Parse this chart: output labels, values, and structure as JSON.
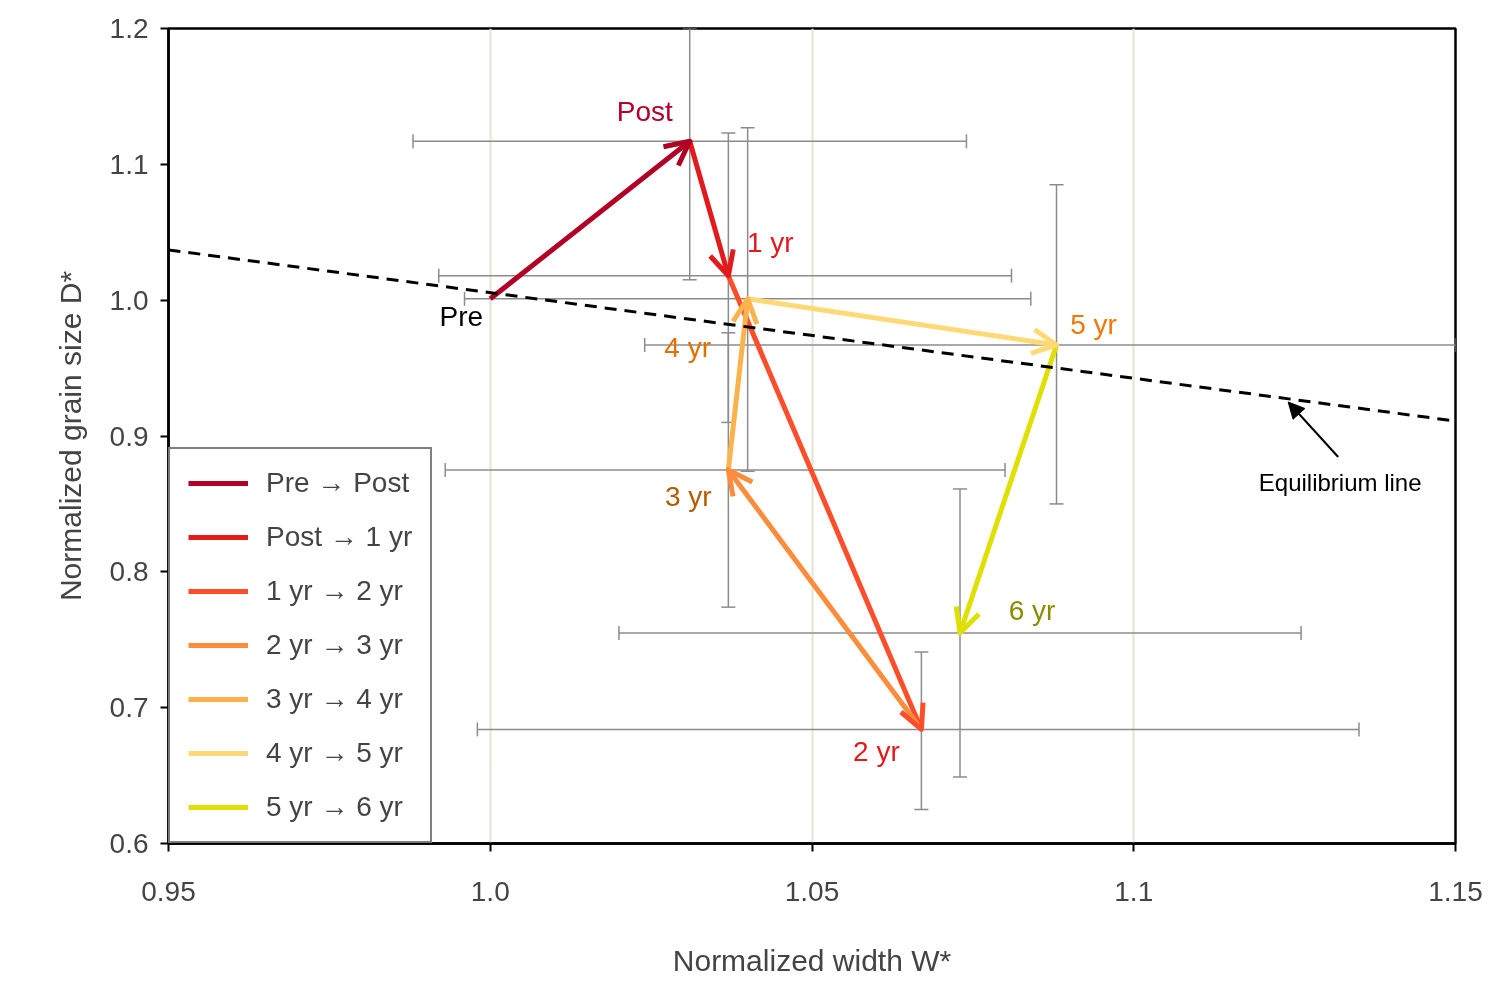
{
  "chart_data": {
    "type": "line",
    "xlabel": "Normalized width W*",
    "ylabel": "Normalized grain size D*",
    "xlim": [
      0.95,
      1.15
    ],
    "ylim": [
      0.6,
      1.2
    ],
    "xticks": [
      0.95,
      {
        "value": 1.0,
        "label": "1.0"
      },
      1.05,
      1.1,
      1.15
    ],
    "yticks": [
      0.6,
      0.7,
      0.8,
      0.9,
      {
        "value": 1.0,
        "label": "1.0"
      },
      1.1,
      1.2
    ],
    "grid": "x",
    "legend": "bottom left",
    "series": [
      {
        "name": "Pre → Post",
        "color": "#b10026",
        "x": [
          1.0,
          1.031
        ],
        "values": [
          1.001,
          1.117
        ],
        "errors": [
          null,
          [
            1.015,
            1.2
          ]
        ],
        "xerrors": [
          null,
          [
            0.988,
            1.074
          ]
        ]
      },
      {
        "name": "Post → 1 yr",
        "color": "#e31a1c",
        "x": [
          1.031,
          1.037
        ],
        "values": [
          1.117,
          1.018
        ],
        "errors": [
          null,
          [
            0.91,
            1.123
          ]
        ],
        "xerrors": [
          null,
          [
            0.992,
            1.081
          ]
        ]
      },
      {
        "name": "1 yr → 2 yr",
        "color": "#fc4e2a",
        "x": [
          1.037,
          1.067
        ],
        "values": [
          1.018,
          0.684
        ],
        "errors": [
          null,
          [
            0.625,
            0.741
          ]
        ],
        "xerrors": [
          null,
          [
            0.998,
            1.135
          ]
        ]
      },
      {
        "name": "2 yr → 3 yr",
        "color": "#fd8d3c",
        "x": [
          1.067,
          1.037
        ],
        "values": [
          0.684,
          0.875
        ],
        "errors": [
          null,
          [
            0.774,
            0.976
          ]
        ],
        "xerrors": [
          null,
          [
            0.993,
            1.08
          ]
        ]
      },
      {
        "name": "3 yr → 4 yr",
        "color": "#feb24c",
        "x": [
          1.037,
          1.04
        ],
        "values": [
          0.875,
          1.001
        ],
        "errors": [
          null,
          [
            0.874,
            1.127
          ]
        ],
        "xerrors": [
          null,
          [
            0.996,
            1.084
          ]
        ]
      },
      {
        "name": "4 yr → 5 yr",
        "color": "#fed976",
        "x": [
          1.04,
          1.088
        ],
        "values": [
          1.001,
          0.967
        ],
        "errors": [
          null,
          [
            0.85,
            1.085
          ]
        ],
        "xerrors": [
          null,
          [
            1.024,
            1.15
          ]
        ]
      },
      {
        "name": "5 yr → 6 yr",
        "color": "#e0e000",
        "x": [
          1.088,
          1.073
        ],
        "values": [
          0.967,
          0.755
        ],
        "errors": [
          null,
          [
            0.649,
            0.861
          ]
        ],
        "xerrors": [
          null,
          [
            1.02,
            1.126
          ]
        ]
      },
      {
        "type": "line",
        "color": "#000000",
        "line_style": "dashed",
        "x": [
          0.95,
          1.15
        ],
        "values": [
          1.037,
          0.911
        ]
      }
    ],
    "annotations": [
      {
        "text": "Pre",
        "x": 1.0,
        "y": 1.001
      },
      {
        "text": "Post",
        "x": 1.031,
        "y": 1.117
      },
      {
        "text": "1 yr",
        "x": 1.037,
        "y": 1.018
      },
      {
        "text": "2 yr",
        "x": 1.067,
        "y": 0.684
      },
      {
        "text": "3 yr",
        "x": 1.037,
        "y": 0.875
      },
      {
        "text": "4 yr",
        "x": 1.04,
        "y": 1.001
      },
      {
        "text": "5 yr",
        "x": 1.088,
        "y": 0.967
      },
      {
        "text": "6 yr",
        "x": 1.073,
        "y": 0.755
      },
      {
        "text": "Equilibrium line",
        "x": 1.124,
        "y": 0.925
      }
    ]
  }
}
